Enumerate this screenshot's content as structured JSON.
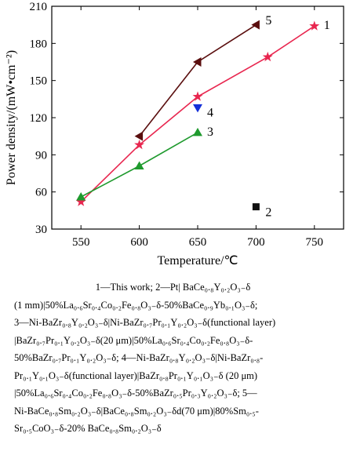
{
  "chart_data": {
    "type": "line",
    "xlabel": "Temperature/℃",
    "ylabel": "Power density/(mW•cm⁻²)",
    "xlim": [
      525,
      775
    ],
    "ylim": [
      30,
      210
    ],
    "xticks": [
      550,
      600,
      650,
      700,
      750
    ],
    "yticks": [
      30,
      60,
      90,
      120,
      150,
      180,
      210
    ],
    "grid": false,
    "series": [
      {
        "name": "1",
        "color": "#e8264f",
        "marker": "star",
        "points": [
          [
            550,
            52
          ],
          [
            600,
            98
          ],
          [
            650,
            137
          ],
          [
            710,
            169
          ],
          [
            750,
            194
          ]
        ]
      },
      {
        "name": "2",
        "color": "#111111",
        "marker": "square",
        "points": [
          [
            700,
            48
          ]
        ]
      },
      {
        "name": "3",
        "color": "#1f9a2e",
        "marker": "triangle-up",
        "points": [
          [
            550,
            56
          ],
          [
            600,
            81
          ],
          [
            650,
            108
          ]
        ]
      },
      {
        "name": "4",
        "color": "#1430d8",
        "marker": "triangle-down",
        "points": [
          [
            650,
            128
          ]
        ]
      },
      {
        "name": "5",
        "color": "#5a0e0e",
        "marker": "triangle-left",
        "points": [
          [
            600,
            105
          ],
          [
            650,
            165
          ],
          [
            700,
            195
          ]
        ]
      }
    ],
    "annotations": [
      {
        "text": "1",
        "x": 750,
        "y": 194
      },
      {
        "text": "2",
        "x": 700,
        "y": 48
      },
      {
        "text": "3",
        "x": 650,
        "y": 108
      },
      {
        "text": "4",
        "x": 650,
        "y": 128
      },
      {
        "text": "5",
        "x": 700,
        "y": 196
      }
    ]
  },
  "caption": [
    "1—This work; 2—Pt| BaCe₀.₈Y₀.₂O₃₋δ",
    "(1 mm)|50%La₀.₆Sr₀.₄Co₀.₂Fe₀.₈O₃₋δ-50%BaCe₀.₉Yb₀.₁O₃₋δ;",
    "3—Ni-BaZr₀.₈Y₀.₂O₃₋δ|Ni-BaZr₀.₇Pr₀.₁Y₀.₂O₃₋δ(functional layer)",
    "|BaZr₀.₇Pr₀.₁Y₀.₂O₃₋δ(20 μm)|50%La₀.₆Sr₀.₄Co₀.₂Fe₀.₈O₃₋δ-",
    "50%BaZr₀.₇Pr₀.₁Y₀.₂O₃₋δ; 4—Ni-BaZr₀.₈Y₀.₂O₃₋δ|Ni-BaZr₀.₈-",
    "Pr₀.₁Y₀.₁O₃₋δ(functional layer)|BaZr₀.₈Pr₀.₁Y₀.₁O₃₋δ (20 μm)",
    "|50%La₀.₆Sr₀.₄Co₀.₂Fe₀.₈O₃₋δ-50%BaZr₀.₅Pr₀.₃Y₀.₂O₃₋δ; 5—",
    "Ni-BaCe₀.₈Sm₀.₂O₃₋δ|BaCe₀.₈Sm₀.₂O₃₋δd(70 μm)|80%Sm₀.₅-",
    "Sr₀.₅CoO₃₋δ-20% BaCe₀.₈Sm₀.₂O₃₋δ"
  ]
}
